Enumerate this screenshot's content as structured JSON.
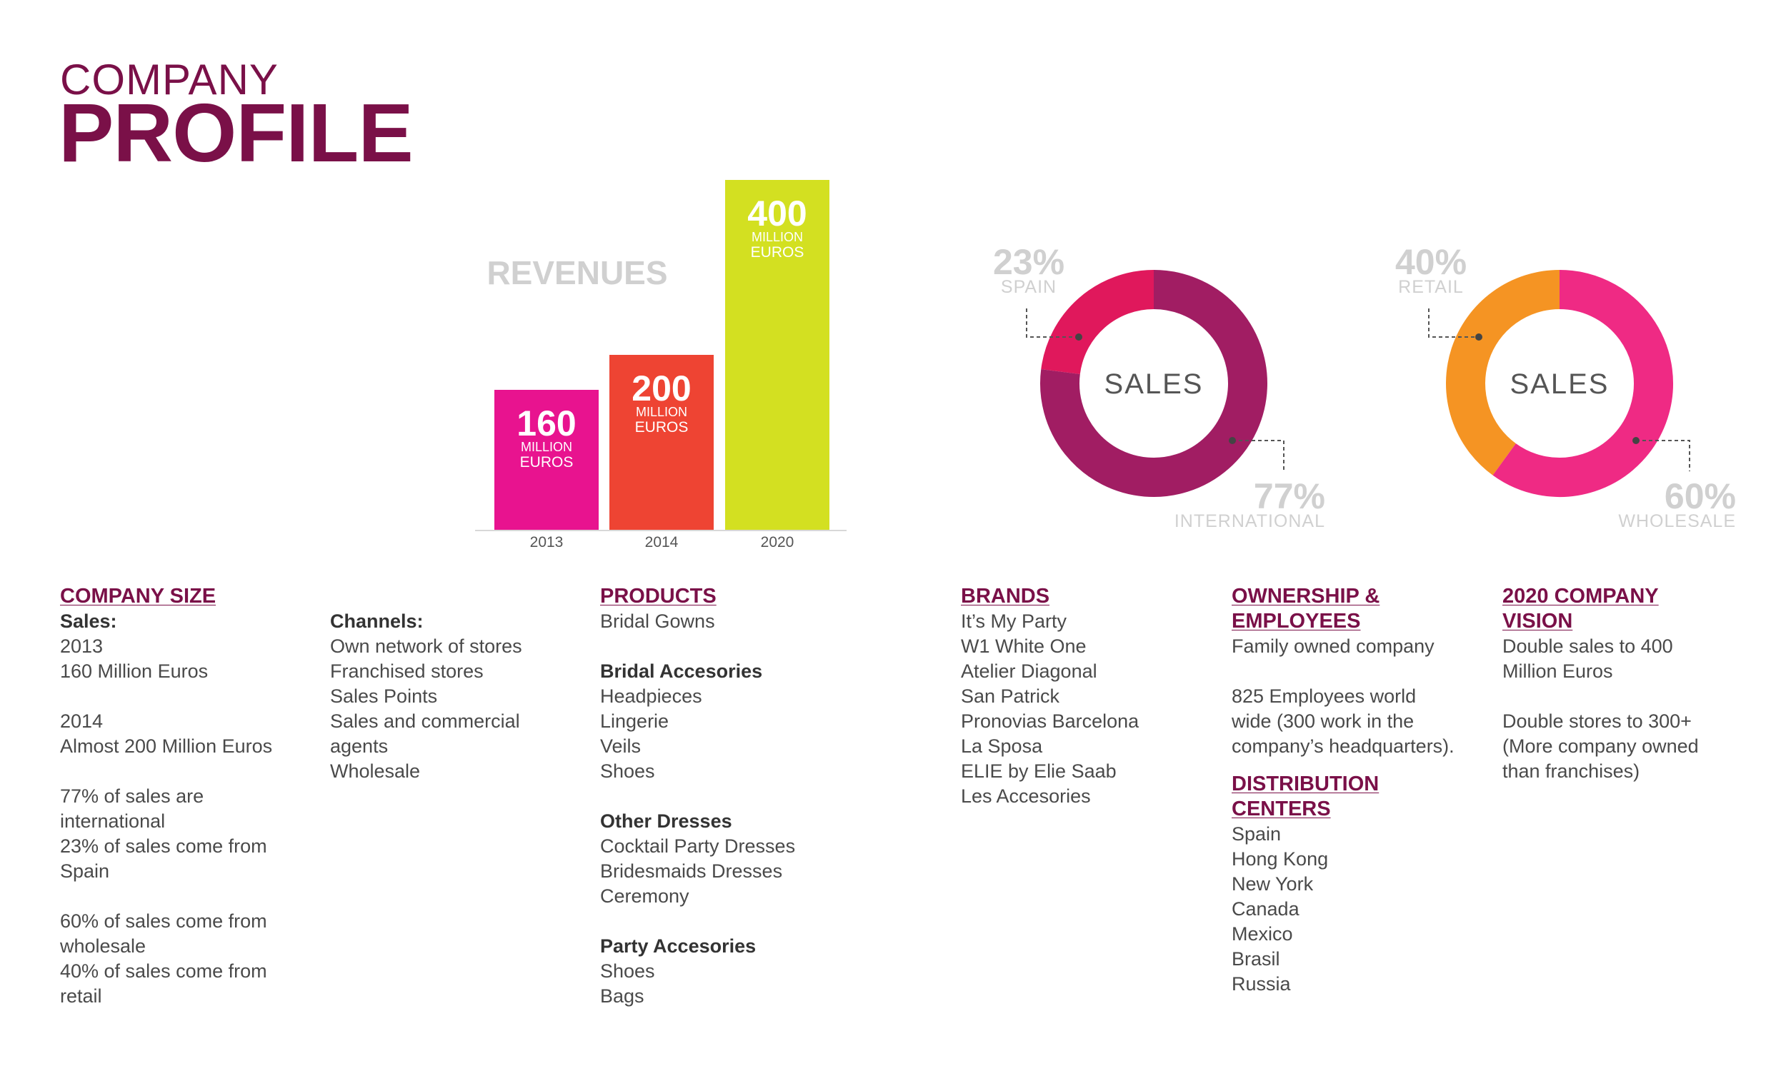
{
  "header": {
    "title_small": "COMPANY",
    "title_big": "PROFILE"
  },
  "colors": {
    "brand": "#7a1048",
    "bar_2013": "#e8138f",
    "bar_2014": "#ee4433",
    "bar_2020": "#d3e021",
    "spain": "#e0185c",
    "international": "#a11d63",
    "retail": "#f59423",
    "wholesale": "#ef2a84",
    "label_grey": "#d0d0d0"
  },
  "chart_data": [
    {
      "type": "bar",
      "title": "REVENUES",
      "categories": [
        "2013",
        "2014",
        "2020"
      ],
      "values": [
        160,
        200,
        400
      ],
      "value_unit_line1": "MILLION",
      "value_unit_line2": "EUROS",
      "ylim": [
        0,
        400
      ],
      "grid": false
    },
    {
      "type": "pie",
      "center_label": "SALES",
      "slices": [
        {
          "label": "SPAIN",
          "value": 23,
          "display": "23%"
        },
        {
          "label": "INTERNATIONAL",
          "value": 77,
          "display": "77%"
        }
      ]
    },
    {
      "type": "pie",
      "center_label": "SALES",
      "slices": [
        {
          "label": "RETAIL",
          "value": 40,
          "display": "40%"
        },
        {
          "label": "WHOLESALE",
          "value": 60,
          "display": "60%"
        }
      ]
    }
  ],
  "sections": {
    "company_size": {
      "heading": "COMPANY SIZE",
      "lines": [
        "Sales:",
        "2013",
        "160 Million Euros",
        "",
        "2014",
        "Almost 200 Million Euros",
        "",
        "77% of sales are",
        "international",
        "23% of sales come from",
        "Spain",
        "",
        "60% of sales come from",
        "wholesale",
        "40% of sales come from",
        "retail"
      ]
    },
    "channels": {
      "heading": "Channels:",
      "lines": [
        "Own network of stores",
        "Franchised stores",
        "Sales Points",
        "Sales and commercial",
        "agents",
        "Wholesale"
      ]
    },
    "products": {
      "heading": "PRODUCTS",
      "lines": [
        "Bridal Gowns",
        "",
        "Bridal Accesories",
        "Headpieces",
        "Lingerie",
        "Veils",
        "Shoes",
        "",
        "Other Dresses",
        "Cocktail Party Dresses",
        "Bridesmaids Dresses",
        "Ceremony",
        "",
        "Party Accesories",
        "Shoes",
        "Bags"
      ]
    },
    "brands": {
      "heading": "BRANDS",
      "lines": [
        "It’s My Party",
        "W1 White One",
        "Atelier Diagonal",
        "San Patrick",
        "Pronovias Barcelona",
        "La Sposa",
        "ELIE by Elie Saab",
        "Les Accesories"
      ]
    },
    "ownership": {
      "heading_1": "OWNERSHIP &",
      "heading_2": "EMPLOYEES",
      "lines": [
        "Family owned company",
        "",
        "825 Employees world",
        "wide (300 work in the",
        "company’s headquarters)."
      ]
    },
    "distribution": {
      "heading_1": "DISTRIBUTION",
      "heading_2": "CENTERS",
      "lines": [
        "Spain",
        "Hong Kong",
        "New York",
        "Canada",
        "Mexico",
        "Brasil",
        "Russia"
      ]
    },
    "vision": {
      "heading_1": "2020 COMPANY",
      "heading_2": "VISION",
      "lines": [
        "Double sales to 400",
        "Million Euros",
        "",
        "Double stores to 300+",
        "(More company owned",
        "than franchises)"
      ]
    }
  }
}
